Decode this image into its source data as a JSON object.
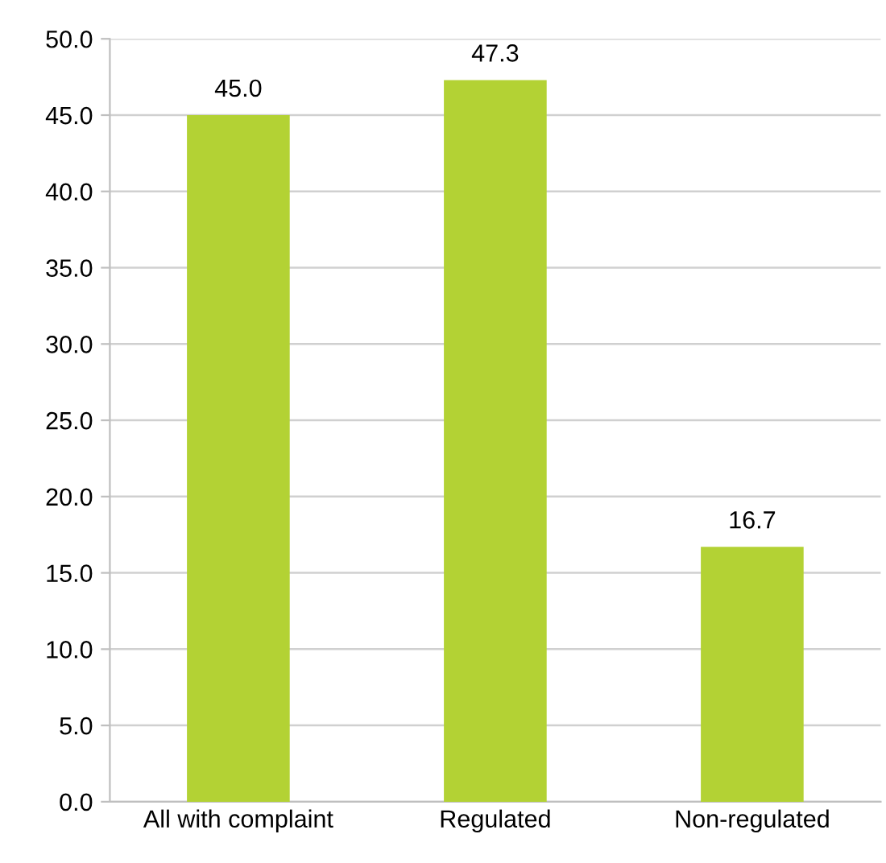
{
  "chart_data": {
    "type": "bar",
    "categories": [
      "All with complaint",
      "Regulated",
      "Non-regulated"
    ],
    "values": [
      45.0,
      47.3,
      16.7
    ],
    "color": "#b3d234",
    "ylim": [
      0,
      50
    ],
    "yticks": [
      {
        "value": 0,
        "label": "0.0"
      },
      {
        "value": 5,
        "label": "5.0"
      },
      {
        "value": 10,
        "label": "10.0"
      },
      {
        "value": 15,
        "label": "15.0"
      },
      {
        "value": 20,
        "label": "20.0"
      },
      {
        "value": 25,
        "label": "25.0"
      },
      {
        "value": 30,
        "label": "30.0"
      },
      {
        "value": 35,
        "label": "35.0"
      },
      {
        "value": 40,
        "label": "40.0"
      },
      {
        "value": 45,
        "label": "45.0"
      },
      {
        "value": 50,
        "label": "50.0"
      }
    ],
    "value_labels": [
      "45.0",
      "47.3",
      "16.7"
    ],
    "grid": "y"
  }
}
